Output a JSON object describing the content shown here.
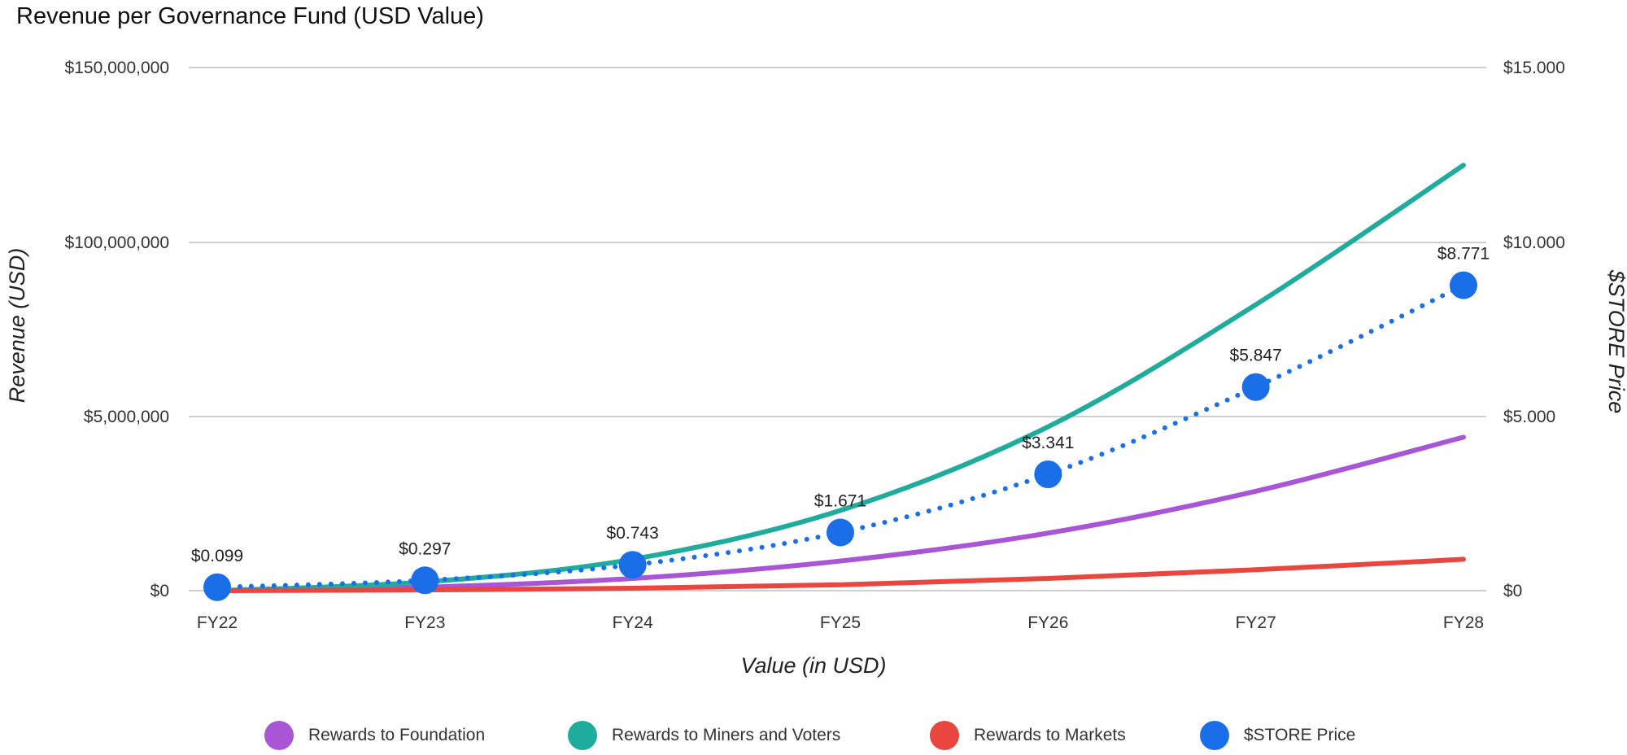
{
  "chart_data": {
    "type": "line",
    "title": "Revenue per Governance Fund (USD Value)",
    "xlabel": "Value (in USD)",
    "ylabel": "Revenue (USD)",
    "y2label": "$STORE Price",
    "categories": [
      "FY22",
      "FY23",
      "FY24",
      "FY25",
      "FY26",
      "FY27",
      "FY28"
    ],
    "y_ticks": [
      "$0",
      "$5,000,000",
      "$100,000,000",
      "$150,000,000"
    ],
    "y2_ticks": [
      "$0",
      "$5.000",
      "$10.000",
      "$15.000"
    ],
    "ylim": [
      0,
      150000000
    ],
    "y2lim": [
      0,
      15
    ],
    "grid": true,
    "legend_position": "bottom",
    "series": [
      {
        "name": "Rewards to Foundation",
        "color": "#a855d6",
        "axis": "left",
        "style": "solid",
        "values": [
          0,
          1000000,
          3500000,
          8500000,
          16500000,
          28500000,
          44000000
        ]
      },
      {
        "name": "Rewards to Miners and Voters",
        "color": "#1fac9c",
        "axis": "left",
        "style": "solid",
        "values": [
          0,
          2500000,
          9000000,
          23000000,
          47000000,
          82000000,
          122000000
        ]
      },
      {
        "name": "Rewards to Markets",
        "color": "#e8463f",
        "axis": "left",
        "style": "solid",
        "values": [
          0,
          200000,
          700000,
          1700000,
          3500000,
          6000000,
          9000000
        ]
      },
      {
        "name": "$STORE Price",
        "color": "#1a6ee8",
        "axis": "right",
        "style": "dotted-markers",
        "values": [
          0.099,
          0.297,
          0.743,
          1.671,
          3.341,
          5.847,
          8.771
        ],
        "labels": [
          "$0.099",
          "$0.297",
          "$0.743",
          "$1.671",
          "$3.341",
          "$5.847",
          "$8.771"
        ]
      }
    ]
  }
}
